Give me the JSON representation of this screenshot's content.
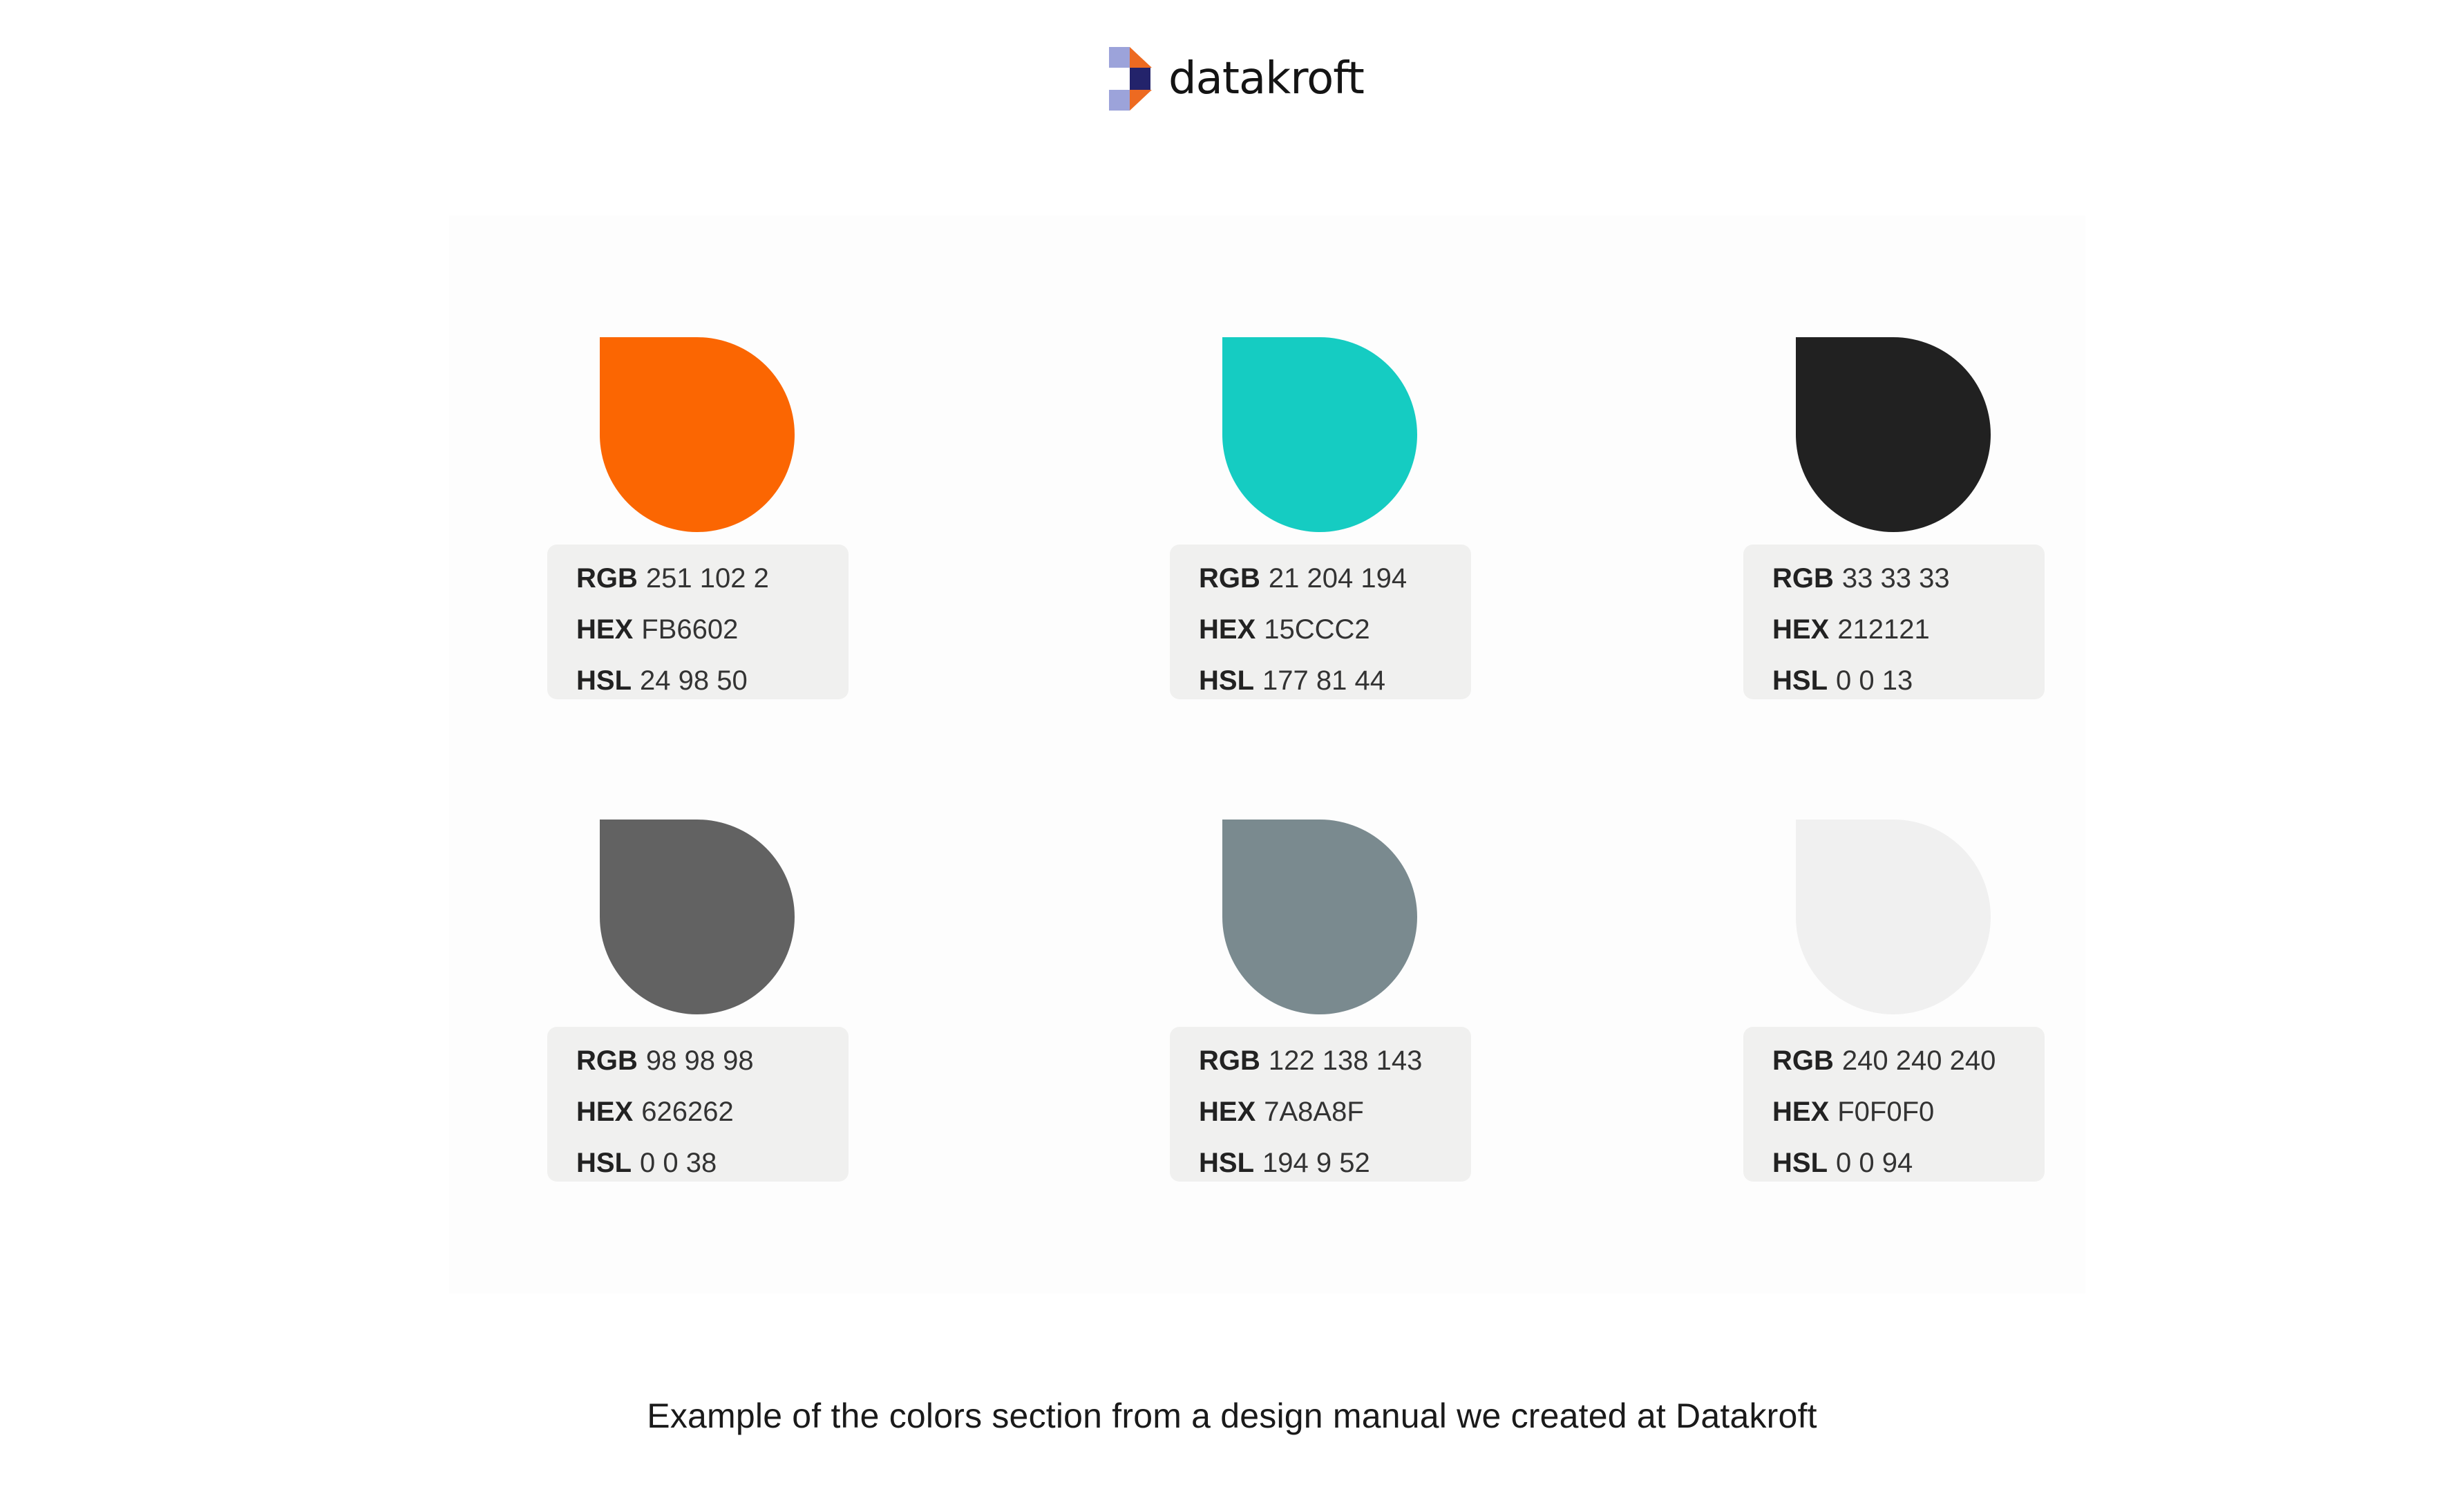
{
  "brand": {
    "name": "datakroft",
    "logo_icon": "datakroft-logo-icon",
    "logo_colors": [
      "#9CA3DA",
      "#ED6A21",
      "#23236B"
    ]
  },
  "swatches": [
    {
      "color": "#FB6602",
      "rgb_label": "RGB",
      "rgb": "251 102 2",
      "hex_label": "HEX",
      "hex": "FB6602",
      "hsl_label": "HSL",
      "hsl": "24 98 50"
    },
    {
      "color": "#15CCC2",
      "rgb_label": "RGB",
      "rgb": "21 204 194",
      "hex_label": "HEX",
      "hex": "15CCC2",
      "hsl_label": "HSL",
      "hsl": "177 81 44"
    },
    {
      "color": "#212121",
      "rgb_label": "RGB",
      "rgb": "33 33 33",
      "hex_label": "HEX",
      "hex": "212121",
      "hsl_label": "HSL",
      "hsl": "0 0 13"
    },
    {
      "color": "#626262",
      "rgb_label": "RGB",
      "rgb": "98 98 98",
      "hex_label": "HEX",
      "hex": "626262",
      "hsl_label": "HSL",
      "hsl": "0 0 38"
    },
    {
      "color": "#7A8A8F",
      "rgb_label": "RGB",
      "rgb": "122 138 143",
      "hex_label": "HEX",
      "hex": "7A8A8F",
      "hsl_label": "HSL",
      "hsl": "194 9 52"
    },
    {
      "color": "#F0F0F0",
      "rgb_label": "RGB",
      "rgb": "240 240 240",
      "hex_label": "HEX",
      "hex": "F0F0F0",
      "hsl_label": "HSL",
      "hsl": "0 0 94"
    }
  ],
  "caption": "Example of the colors section from a design manual we created at Datakroft"
}
